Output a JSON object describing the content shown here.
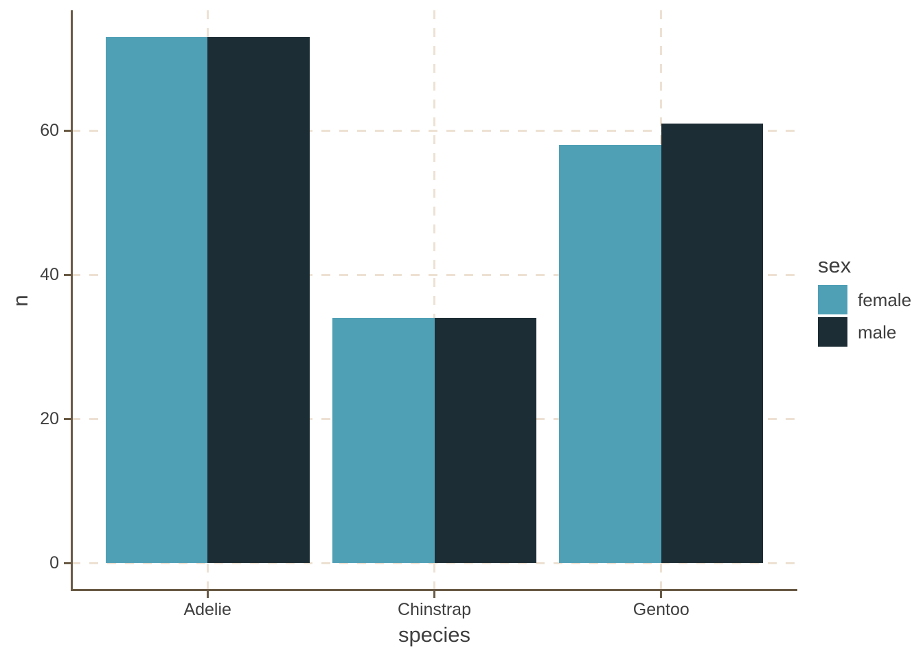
{
  "chart_data": {
    "type": "bar",
    "bar_grouping": "dodge",
    "title": "",
    "categories": [
      "Adelie",
      "Chinstrap",
      "Gentoo"
    ],
    "series": [
      {
        "name": "female",
        "color": "#4f9fb5",
        "values": [
          73,
          34,
          58
        ]
      },
      {
        "name": "male",
        "color": "#1d2d35",
        "values": [
          73,
          34,
          61
        ]
      }
    ],
    "xlabel": "species",
    "ylabel": "n",
    "y_ticks": [
      0,
      20,
      40,
      60
    ],
    "ylim": [
      0,
      76.65
    ],
    "grid": "dashed-major",
    "legend": {
      "title": "sex",
      "position": "right",
      "entries": [
        "female",
        "male"
      ]
    }
  },
  "style": {
    "background_color": "#ffffff",
    "axis_color": "#695a45",
    "grid_color": "#ede1d3",
    "text_color": "#3e3e3e"
  }
}
